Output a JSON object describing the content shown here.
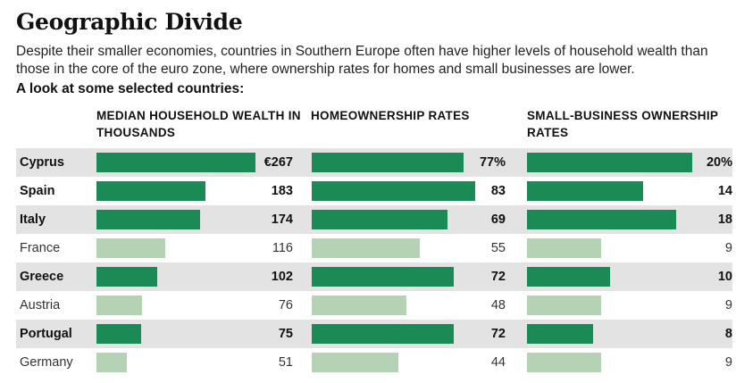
{
  "header": {
    "title": "Geographic Divide",
    "subtitle": "Despite their smaller economies, countries in Southern Europe often have higher levels of household wealth than those in the core of the euro zone, where ownership rates for homes and small businesses are lower.",
    "lead": "A look at some selected countries:"
  },
  "colors": {
    "highlight_bar": "#1b8a54",
    "muted_bar": "#b5d3b4",
    "row_shade": "#e3e3e3"
  },
  "chart_data": [
    {
      "type": "bar",
      "title": "MEDIAN HOUSEHOLD WEALTH IN THOUSANDS",
      "unit": "€ thousands",
      "categories": [
        "Cyprus",
        "Spain",
        "Italy",
        "France",
        "Greece",
        "Austria",
        "Portugal",
        "Germany"
      ],
      "values": [
        267,
        183,
        174,
        116,
        102,
        76,
        75,
        51
      ],
      "labels": [
        "€267",
        "183",
        "174",
        "116",
        "102",
        "76",
        "75",
        "51"
      ],
      "xlim": [
        0,
        267
      ]
    },
    {
      "type": "bar",
      "title": "HOMEOWNERSHIP RATES",
      "unit": "%",
      "categories": [
        "Cyprus",
        "Spain",
        "Italy",
        "France",
        "Greece",
        "Austria",
        "Portugal",
        "Germany"
      ],
      "values": [
        77,
        83,
        69,
        55,
        72,
        48,
        72,
        44
      ],
      "labels": [
        "77%",
        "83",
        "69",
        "55",
        "72",
        "48",
        "72",
        "44"
      ],
      "xlim": [
        0,
        83
      ]
    },
    {
      "type": "bar",
      "title": "SMALL-BUSINESS OWNERSHIP RATES",
      "unit": "%",
      "categories": [
        "Cyprus",
        "Spain",
        "Italy",
        "France",
        "Greece",
        "Austria",
        "Portugal",
        "Germany"
      ],
      "values": [
        20,
        14,
        18,
        9,
        10,
        9,
        8,
        9
      ],
      "labels": [
        "20%",
        "14",
        "18",
        "9",
        "10",
        "9",
        "8",
        "9"
      ],
      "xlim": [
        0,
        20
      ]
    }
  ],
  "highlighted": [
    "Cyprus",
    "Spain",
    "Italy",
    "Greece",
    "Portugal"
  ]
}
